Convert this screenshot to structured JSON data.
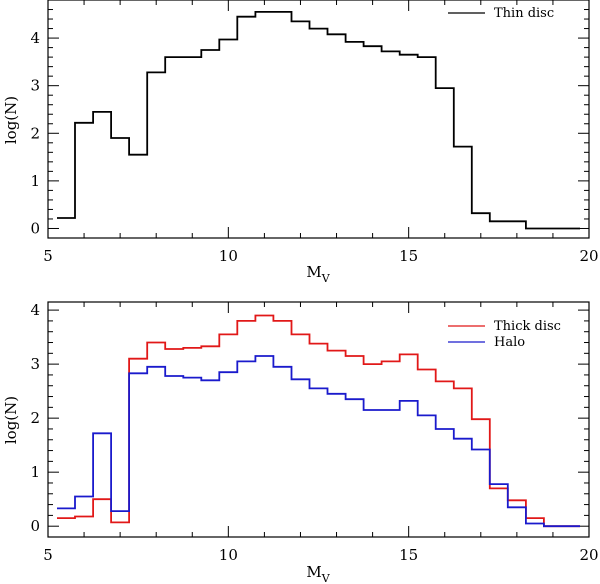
{
  "chart_data": [
    {
      "type": "line",
      "step": true,
      "xlabel": "M",
      "xlabel_sub": "V",
      "ylabel": "log(N)",
      "xlim": [
        5,
        20
      ],
      "ylim": [
        -0.2,
        4.8
      ],
      "xticks": [
        5,
        10,
        15,
        20
      ],
      "yticks": [
        0,
        1,
        2,
        3,
        4
      ],
      "legend_position": "top-right",
      "series": [
        {
          "name": "Thin disc",
          "color": "#000000",
          "edges": [
            5.25,
            5.75,
            6.25,
            6.75,
            7.25,
            7.75,
            8.25,
            8.75,
            9.25,
            9.75,
            10.25,
            10.75,
            11.25,
            11.75,
            12.25,
            12.75,
            13.25,
            13.75,
            14.25,
            14.75,
            15.25,
            15.75,
            16.25,
            16.75,
            17.25,
            17.75,
            18.25,
            18.75,
            19.25,
            19.75
          ],
          "values": [
            0.22,
            2.22,
            2.45,
            1.9,
            1.55,
            3.28,
            3.6,
            3.6,
            3.75,
            3.97,
            4.45,
            4.55,
            4.55,
            4.35,
            4.2,
            4.08,
            3.92,
            3.83,
            3.72,
            3.65,
            3.6,
            2.95,
            1.72,
            0.32,
            0.15,
            0.15,
            0.0,
            0.0,
            0.0
          ]
        }
      ]
    },
    {
      "type": "line",
      "step": true,
      "xlabel": "M",
      "xlabel_sub": "V",
      "ylabel": "log(N)",
      "xlim": [
        5,
        20
      ],
      "ylim": [
        -0.2,
        4.15
      ],
      "xticks": [
        5,
        10,
        15,
        20
      ],
      "yticks": [
        0,
        1,
        2,
        3,
        4
      ],
      "legend_position": "top-right",
      "series": [
        {
          "name": "Thick disc",
          "color": "#e11818",
          "edges": [
            5.25,
            5.75,
            6.25,
            6.75,
            7.25,
            7.75,
            8.25,
            8.75,
            9.25,
            9.75,
            10.25,
            10.75,
            11.25,
            11.75,
            12.25,
            12.75,
            13.25,
            13.75,
            14.25,
            14.75,
            15.25,
            15.75,
            16.25,
            16.75,
            17.25,
            17.75,
            18.25,
            18.75,
            19.25,
            19.75
          ],
          "values": [
            0.15,
            0.18,
            0.5,
            0.07,
            3.1,
            3.4,
            3.28,
            3.3,
            3.33,
            3.55,
            3.8,
            3.9,
            3.8,
            3.55,
            3.38,
            3.25,
            3.15,
            3.0,
            3.05,
            3.18,
            2.9,
            2.68,
            2.55,
            1.98,
            0.7,
            0.48,
            0.15,
            0.0,
            0.0
          ]
        },
        {
          "name": "Halo",
          "color": "#1a1acc",
          "edges": [
            5.25,
            5.75,
            6.25,
            6.75,
            7.25,
            7.75,
            8.25,
            8.75,
            9.25,
            9.75,
            10.25,
            10.75,
            11.25,
            11.75,
            12.25,
            12.75,
            13.25,
            13.75,
            14.25,
            14.75,
            15.25,
            15.75,
            16.25,
            16.75,
            17.25,
            17.75,
            18.25,
            18.75,
            19.25,
            19.75
          ],
          "values": [
            0.33,
            0.55,
            1.72,
            0.28,
            2.83,
            2.95,
            2.78,
            2.75,
            2.7,
            2.85,
            3.05,
            3.15,
            2.95,
            2.72,
            2.55,
            2.45,
            2.35,
            2.15,
            2.15,
            2.32,
            2.05,
            1.8,
            1.62,
            1.42,
            0.78,
            0.35,
            0.05,
            0.0,
            0.0
          ]
        }
      ]
    }
  ]
}
